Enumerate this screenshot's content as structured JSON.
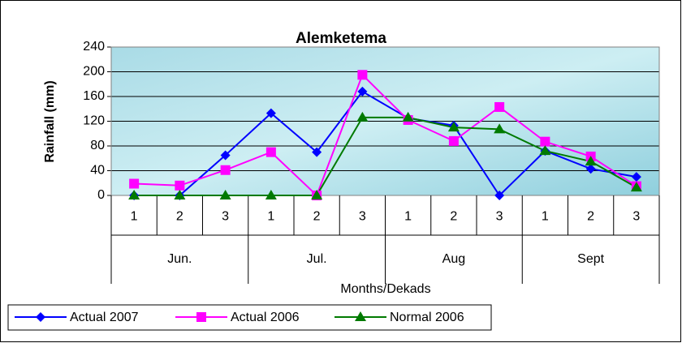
{
  "chart_data": {
    "type": "line",
    "title": "Alemketema",
    "x_label": "Months/Dekads",
    "y_label": "Rainfall (mm)",
    "categories": [
      "1",
      "2",
      "3",
      "1",
      "2",
      "3",
      "1",
      "2",
      "3",
      "1",
      "2",
      "3"
    ],
    "groups": [
      "Jun.",
      "Jul.",
      "Aug",
      "Sept"
    ],
    "ylim": [
      0,
      240
    ],
    "yticks": [
      0,
      40,
      80,
      120,
      160,
      200,
      240
    ],
    "grid": true,
    "legend": "bottom",
    "series": [
      {
        "name": "Actual 2007",
        "color": "#0000ff",
        "marker": "diamond",
        "values": [
          0,
          0,
          65,
          133,
          70,
          168,
          125,
          113,
          0,
          72,
          43,
          30
        ]
      },
      {
        "name": "Actual 2006",
        "color": "#ff00ff",
        "marker": "square",
        "values": [
          19,
          16,
          41,
          70,
          0,
          195,
          122,
          88,
          143,
          87,
          63,
          15
        ]
      },
      {
        "name": "Normal 2006",
        "color": "#007a00",
        "marker": "triangle",
        "values": [
          0,
          0,
          0,
          0,
          0,
          126,
          126,
          110,
          107,
          72,
          55,
          13
        ]
      }
    ]
  }
}
